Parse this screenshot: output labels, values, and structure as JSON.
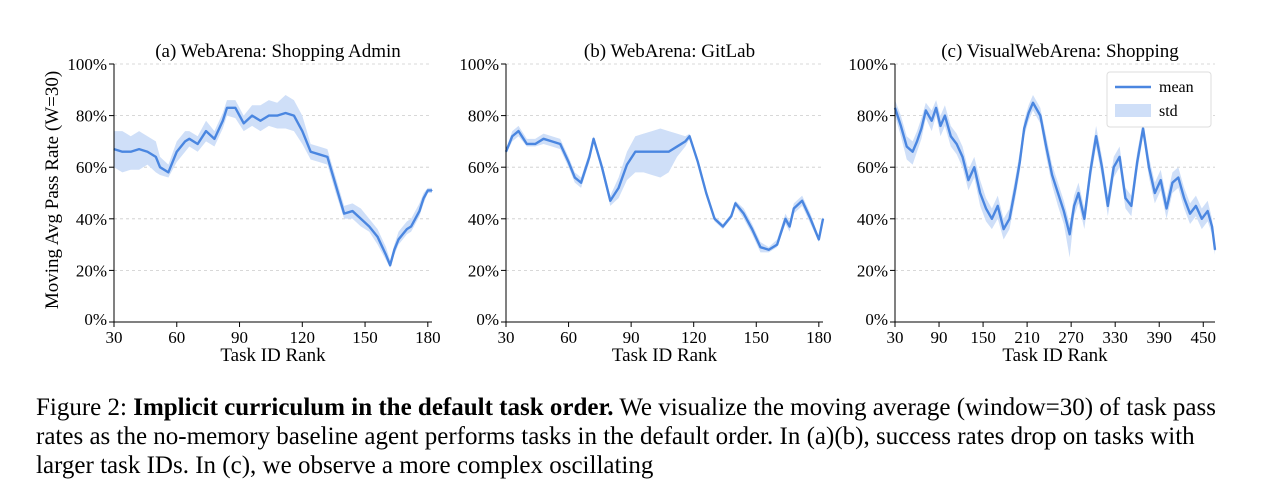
{
  "ylabel": "Moving Avg Pass Rate (W=30)",
  "legend": {
    "mean_label": "mean",
    "std_label": "std"
  },
  "colors": {
    "line": "#4a86e0",
    "band": "#cfdff8",
    "grid": "#cccccc"
  },
  "caption": {
    "prefix": "Figure 2: ",
    "bold": "Implicit curriculum in the default task order.",
    "rest": " We visualize the moving average (window=30) of task pass rates as the no-memory baseline agent performs tasks in the default order. In (a)(b), success rates drop on tasks with larger task IDs. In (c), we observe a more complex oscillating"
  },
  "chart_data": [
    {
      "type": "line",
      "title": "(a) WebArena: Shopping Admin",
      "xlabel": "Task ID Rank",
      "ylabel": "Moving Avg Pass Rate (W=30)",
      "xlim": [
        30,
        182
      ],
      "ylim": [
        0,
        100
      ],
      "xticks": [
        30,
        60,
        90,
        120,
        150,
        180
      ],
      "yticks": [
        0,
        20,
        40,
        60,
        80,
        100
      ],
      "ytick_format": "percent",
      "grid": "y-dashed",
      "series": [
        {
          "name": "mean",
          "x": [
            30,
            34,
            38,
            42,
            46,
            50,
            52,
            56,
            60,
            64,
            66,
            70,
            74,
            78,
            82,
            84,
            88,
            92,
            96,
            100,
            104,
            108,
            112,
            116,
            120,
            124,
            128,
            132,
            136,
            140,
            144,
            148,
            152,
            156,
            160,
            162,
            164,
            166,
            168,
            170,
            172,
            176,
            178,
            180,
            182
          ],
          "y": [
            67,
            66,
            66,
            67,
            66,
            64,
            60,
            58,
            66,
            70,
            71,
            69,
            74,
            71,
            78,
            83,
            83,
            77,
            80,
            78,
            80,
            80,
            81,
            80,
            74,
            66,
            65,
            64,
            53,
            42,
            43,
            40,
            37,
            33,
            26,
            22,
            28,
            32,
            34,
            36,
            37,
            43,
            48,
            51,
            51
          ],
          "lower": [
            60,
            58,
            59,
            59,
            61,
            58,
            57,
            56,
            62,
            66,
            68,
            66,
            70,
            68,
            75,
            80,
            79,
            74,
            76,
            74,
            76,
            75,
            75,
            74,
            69,
            63,
            62,
            61,
            50,
            40,
            40,
            37,
            35,
            30,
            24,
            21,
            26,
            30,
            32,
            34,
            35,
            41,
            46,
            50,
            50
          ],
          "upper": [
            74,
            74,
            72,
            74,
            72,
            70,
            64,
            61,
            70,
            74,
            74,
            72,
            78,
            74,
            81,
            86,
            86,
            80,
            84,
            84,
            86,
            85,
            88,
            86,
            80,
            69,
            68,
            67,
            56,
            45,
            46,
            44,
            40,
            36,
            29,
            24,
            30,
            35,
            37,
            39,
            40,
            46,
            50,
            52,
            52
          ]
        }
      ]
    },
    {
      "type": "line",
      "title": "(b) WebArena: GitLab",
      "xlabel": "Task ID Rank",
      "ylabel": "",
      "xlim": [
        30,
        182
      ],
      "ylim": [
        0,
        100
      ],
      "xticks": [
        30,
        60,
        90,
        120,
        150,
        180
      ],
      "yticks": [
        0,
        20,
        40,
        60,
        80,
        100
      ],
      "ytick_format": "percent",
      "grid": "y-dashed",
      "series": [
        {
          "name": "mean",
          "x": [
            30,
            33,
            36,
            40,
            44,
            48,
            52,
            56,
            60,
            63,
            66,
            70,
            72,
            76,
            80,
            84,
            88,
            92,
            96,
            100,
            104,
            108,
            112,
            116,
            118,
            122,
            126,
            130,
            134,
            138,
            140,
            144,
            148,
            152,
            156,
            160,
            164,
            166,
            168,
            172,
            176,
            180,
            182
          ],
          "y": [
            66,
            72,
            74,
            69,
            69,
            71,
            70,
            69,
            62,
            56,
            54,
            64,
            71,
            60,
            47,
            52,
            61,
            66,
            66,
            66,
            66,
            66,
            68,
            70,
            72,
            62,
            50,
            40,
            37,
            41,
            46,
            42,
            36,
            29,
            28,
            30,
            40,
            37,
            44,
            47,
            40,
            32,
            40
          ],
          "lower": [
            65,
            70,
            72,
            68,
            68,
            69,
            68,
            67,
            60,
            54,
            52,
            62,
            70,
            58,
            45,
            48,
            55,
            58,
            58,
            57,
            56,
            58,
            64,
            68,
            71,
            61,
            49,
            39,
            36,
            40,
            45,
            40,
            34,
            27,
            27,
            29,
            38,
            35,
            42,
            45,
            38,
            31,
            39
          ],
          "upper": [
            67,
            74,
            76,
            71,
            71,
            73,
            72,
            71,
            64,
            58,
            56,
            66,
            72,
            62,
            49,
            56,
            66,
            72,
            73,
            74,
            75,
            74,
            73,
            72,
            73,
            63,
            51,
            41,
            38,
            42,
            47,
            44,
            38,
            31,
            29,
            32,
            42,
            39,
            46,
            49,
            42,
            33,
            41
          ]
        }
      ]
    },
    {
      "type": "line",
      "title": "(c) VisualWebArena: Shopping",
      "xlabel": "Task ID Rank",
      "ylabel": "",
      "xlim": [
        30,
        466
      ],
      "ylim": [
        0,
        100
      ],
      "xticks": [
        30,
        90,
        150,
        210,
        270,
        330,
        390,
        450
      ],
      "yticks": [
        0,
        20,
        40,
        60,
        80,
        100
      ],
      "ytick_format": "percent",
      "grid": "y-dashed",
      "legend": "top-right",
      "series": [
        {
          "name": "mean",
          "x": [
            30,
            38,
            46,
            54,
            60,
            66,
            72,
            80,
            86,
            92,
            98,
            106,
            114,
            122,
            130,
            138,
            146,
            154,
            162,
            170,
            178,
            186,
            194,
            200,
            206,
            212,
            218,
            222,
            228,
            236,
            244,
            252,
            260,
            268,
            274,
            280,
            288,
            296,
            304,
            312,
            320,
            328,
            336,
            344,
            352,
            360,
            368,
            376,
            384,
            392,
            400,
            408,
            416,
            424,
            432,
            440,
            448,
            456,
            462,
            466
          ],
          "y": [
            83,
            76,
            68,
            66,
            70,
            75,
            82,
            78,
            83,
            76,
            80,
            72,
            69,
            64,
            55,
            60,
            50,
            44,
            40,
            45,
            36,
            40,
            52,
            62,
            75,
            81,
            85,
            83,
            80,
            68,
            57,
            50,
            43,
            34,
            45,
            50,
            40,
            58,
            72,
            60,
            45,
            60,
            64,
            48,
            45,
            62,
            75,
            60,
            50,
            55,
            44,
            54,
            56,
            48,
            42,
            45,
            40,
            43,
            37,
            28
          ],
          "lower": [
            80,
            72,
            63,
            61,
            66,
            71,
            79,
            74,
            80,
            72,
            76,
            68,
            65,
            60,
            51,
            56,
            45,
            39,
            36,
            40,
            32,
            36,
            48,
            58,
            72,
            78,
            82,
            80,
            77,
            64,
            53,
            45,
            38,
            25,
            41,
            46,
            36,
            54,
            68,
            56,
            41,
            56,
            60,
            44,
            41,
            58,
            72,
            56,
            46,
            51,
            40,
            50,
            52,
            44,
            38,
            41,
            36,
            39,
            34,
            26
          ],
          "upper": [
            86,
            80,
            72,
            70,
            74,
            79,
            85,
            82,
            86,
            80,
            84,
            76,
            73,
            68,
            59,
            64,
            55,
            48,
            44,
            49,
            40,
            44,
            56,
            66,
            78,
            84,
            88,
            86,
            83,
            72,
            61,
            54,
            47,
            38,
            49,
            54,
            44,
            62,
            76,
            64,
            49,
            64,
            68,
            52,
            49,
            66,
            78,
            64,
            54,
            59,
            48,
            58,
            60,
            52,
            46,
            49,
            44,
            47,
            40,
            30
          ]
        }
      ]
    }
  ]
}
